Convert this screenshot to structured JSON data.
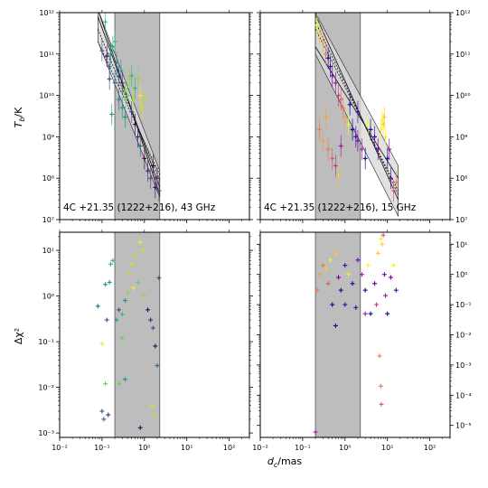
{
  "chart_data": [
    {
      "type": "scatter",
      "panel": "top-left",
      "xscale": "log",
      "yscale": "log",
      "xlim": [
        0.01,
        300
      ],
      "ylim": [
        10000000.0,
        1000000000000.0
      ],
      "ylabel": "T_b/K",
      "annotation": "4C +21.35 (1222+216), 43 GHz",
      "shaded_region": [
        0.2,
        2.3
      ],
      "fit_lines": [
        {
          "x": [
            0.08,
            2.3
          ],
          "y": [
            800000000000.0,
            60000000.0
          ]
        },
        {
          "x": [
            0.08,
            2.3
          ],
          "y": [
            400000000000.0,
            90000000.0
          ]
        },
        {
          "x": [
            0.08,
            2.3
          ],
          "y": [
            1200000000000.0,
            40000000.0
          ]
        },
        {
          "x": [
            0.08,
            2.3
          ],
          "y": [
            200000000000.0,
            120000000.0
          ]
        }
      ],
      "band": {
        "x": [
          0.08,
          2.3
        ],
        "upper": [
          1200000000000.0,
          150000000.0
        ],
        "lower": [
          200000000000.0,
          35000000.0
        ]
      },
      "points": [
        {
          "x": 0.12,
          "y": 600000000000.0,
          "c": "#35b779"
        },
        {
          "x": 0.1,
          "y": 120000000000.0,
          "c": "#3b528b"
        },
        {
          "x": 0.13,
          "y": 90000000000.0,
          "c": "#440154"
        },
        {
          "x": 0.15,
          "y": 50000000000.0,
          "c": "#31688e"
        },
        {
          "x": 0.16,
          "y": 100000000000.0,
          "c": "#21918c"
        },
        {
          "x": 0.18,
          "y": 150000000000.0,
          "c": "#1f9e89"
        },
        {
          "x": 0.2,
          "y": 200000000000.0,
          "c": "#35b779"
        },
        {
          "x": 0.22,
          "y": 60000000000.0,
          "c": "#26828e"
        },
        {
          "x": 0.25,
          "y": 30000000000.0,
          "c": "#3e4989"
        },
        {
          "x": 0.3,
          "y": 20000000000.0,
          "c": "#482878"
        },
        {
          "x": 0.35,
          "y": 14000000000.0,
          "c": "#6ece58"
        },
        {
          "x": 0.28,
          "y": 40000000000.0,
          "c": "#1f9e89"
        },
        {
          "x": 0.4,
          "y": 10000000000.0,
          "c": "#6ece58"
        },
        {
          "x": 0.45,
          "y": 25000000000.0,
          "c": "#90d743"
        },
        {
          "x": 0.5,
          "y": 30000000000.0,
          "c": "#35b779"
        },
        {
          "x": 0.55,
          "y": 8000000000.0,
          "c": "#b5de2b"
        },
        {
          "x": 0.6,
          "y": 15000000000.0,
          "c": "#35b779"
        },
        {
          "x": 0.7,
          "y": 25000000000.0,
          "c": "#90d743"
        },
        {
          "x": 0.8,
          "y": 10000000000.0,
          "c": "#fde725"
        },
        {
          "x": 0.9,
          "y": 5000000000.0,
          "c": "#d8e219"
        },
        {
          "x": 1.0,
          "y": 8000000000.0,
          "c": "#b5de2b"
        },
        {
          "x": 0.5,
          "y": 4000000000.0,
          "c": "#3e4989"
        },
        {
          "x": 0.6,
          "y": 2000000000.0,
          "c": "#440154"
        },
        {
          "x": 0.7,
          "y": 1000000000.0,
          "c": "#482878"
        },
        {
          "x": 0.8,
          "y": 600000000.0,
          "c": "#31688e"
        },
        {
          "x": 1.0,
          "y": 300000000.0,
          "c": "#440154"
        },
        {
          "x": 1.2,
          "y": 150000000.0,
          "c": "#482878"
        },
        {
          "x": 1.4,
          "y": 100000000.0,
          "c": "#3b528b"
        },
        {
          "x": 1.6,
          "y": 200000000.0,
          "c": "#440154"
        },
        {
          "x": 1.8,
          "y": 60000000.0,
          "c": "#440154"
        },
        {
          "x": 2.0,
          "y": 100000000.0,
          "c": "#482878"
        },
        {
          "x": 2.2,
          "y": 50000000.0,
          "c": "#3b528b"
        },
        {
          "x": 0.35,
          "y": 3000000000.0,
          "c": "#21918c"
        },
        {
          "x": 0.25,
          "y": 8000000000.0,
          "c": "#26828e"
        },
        {
          "x": 0.2,
          "y": 20000000000.0,
          "c": "#31688e"
        },
        {
          "x": 0.17,
          "y": 3500000000.0,
          "c": "#21918c"
        },
        {
          "x": 0.3,
          "y": 5000000000.0,
          "c": "#1f9e89"
        },
        {
          "x": 0.15,
          "y": 25000000000.0,
          "c": "#3e4989"
        }
      ]
    },
    {
      "type": "scatter",
      "panel": "top-right",
      "xscale": "log",
      "yscale": "log",
      "xlim": [
        0.01,
        300
      ],
      "ylim": [
        10000000.0,
        1000000000000.0
      ],
      "annotation": "4C +21.35 (1222+216), 15 GHz",
      "shaded_region": [
        0.2,
        2.3
      ],
      "fit_lines": [
        {
          "x": [
            0.2,
            18
          ],
          "y": [
            900000000000.0,
            30000000.0
          ]
        },
        {
          "x": [
            0.2,
            18
          ],
          "y": [
            400000000000.0,
            50000000.0
          ]
        },
        {
          "x": [
            0.2,
            18
          ],
          "y": [
            150000000000.0,
            100000000.0
          ]
        },
        {
          "x": [
            0.2,
            18
          ],
          "y": [
            600000000000.0,
            40000000.0
          ]
        }
      ],
      "band": {
        "x": [
          0.2,
          18
        ],
        "upper": [
          1000000000000.0,
          200000000.0
        ],
        "lower": [
          100000000000.0,
          12000000.0
        ]
      },
      "points": [
        {
          "x": 0.22,
          "y": 500000000000.0,
          "c": "#f0f921"
        },
        {
          "x": 0.25,
          "y": 300000000000.0,
          "c": "#fdca26"
        },
        {
          "x": 0.3,
          "y": 200000000000.0,
          "c": "#fb9f3a"
        },
        {
          "x": 0.35,
          "y": 100000000000.0,
          "c": "#ed7953"
        },
        {
          "x": 0.4,
          "y": 80000000000.0,
          "c": "#0d0887"
        },
        {
          "x": 0.45,
          "y": 50000000000.0,
          "c": "#46039f"
        },
        {
          "x": 0.5,
          "y": 30000000000.0,
          "c": "#7201a8"
        },
        {
          "x": 0.6,
          "y": 20000000000.0,
          "c": "#9c179e"
        },
        {
          "x": 0.7,
          "y": 10000000000.0,
          "c": "#bd3786"
        },
        {
          "x": 0.8,
          "y": 8000000000.0,
          "c": "#d8576b"
        },
        {
          "x": 0.9,
          "y": 5000000000.0,
          "c": "#ed7953"
        },
        {
          "x": 1.0,
          "y": 3000000000.0,
          "c": "#fb9f3a"
        },
        {
          "x": 1.2,
          "y": 2000000000.0,
          "c": "#f0f921"
        },
        {
          "x": 1.5,
          "y": 1500000000.0,
          "c": "#0d0887"
        },
        {
          "x": 1.8,
          "y": 1000000000.0,
          "c": "#46039f"
        },
        {
          "x": 2.0,
          "y": 800000000.0,
          "c": "#7201a8"
        },
        {
          "x": 2.5,
          "y": 500000000.0,
          "c": "#9c179e"
        },
        {
          "x": 3.0,
          "y": 300000000.0,
          "c": "#0d0887"
        },
        {
          "x": 3.5,
          "y": 2000000000.0,
          "c": "#f0f921"
        },
        {
          "x": 4.0,
          "y": 1500000000.0,
          "c": "#0d0887"
        },
        {
          "x": 5.0,
          "y": 1000000000.0,
          "c": "#46039f"
        },
        {
          "x": 6.0,
          "y": 500000000.0,
          "c": "#7201a8"
        },
        {
          "x": 7.0,
          "y": 1500000000.0,
          "c": "#f0f921"
        },
        {
          "x": 8.0,
          "y": 2000000000.0,
          "c": "#fdca26"
        },
        {
          "x": 9.0,
          "y": 1000000000.0,
          "c": "#f0f921"
        },
        {
          "x": 10.0,
          "y": 300000000.0,
          "c": "#0d0887"
        },
        {
          "x": 12.0,
          "y": 100000000.0,
          "c": "#46039f"
        },
        {
          "x": 14.0,
          "y": 50000000.0,
          "c": "#d8576b"
        },
        {
          "x": 16.0,
          "y": 80000000.0,
          "c": "#ed7953"
        },
        {
          "x": 0.3,
          "y": 800000000.0,
          "c": "#fb9f3a"
        },
        {
          "x": 0.4,
          "y": 500000000.0,
          "c": "#ed7953"
        },
        {
          "x": 0.5,
          "y": 300000000.0,
          "c": "#d8576b"
        },
        {
          "x": 0.6,
          "y": 200000000.0,
          "c": "#bd3786"
        },
        {
          "x": 0.7,
          "y": 120000000.0,
          "c": "#fdca26"
        },
        {
          "x": 0.8,
          "y": 600000000.0,
          "c": "#9c179e"
        },
        {
          "x": 0.25,
          "y": 1500000000.0,
          "c": "#ed7953"
        },
        {
          "x": 0.35,
          "y": 3000000000.0,
          "c": "#fb9f3a"
        },
        {
          "x": 1.3,
          "y": 6000000000.0,
          "c": "#0d0887"
        },
        {
          "x": 2.0,
          "y": 4000000000.0,
          "c": "#46039f"
        },
        {
          "x": 7.5,
          "y": 2500000000.0,
          "c": "#f0f921"
        },
        {
          "x": 8.5,
          "y": 3000000000.0,
          "c": "#fdca26"
        },
        {
          "x": 11.0,
          "y": 500000000.0,
          "c": "#9c179e"
        }
      ]
    },
    {
      "type": "scatter",
      "panel": "bottom-left",
      "xscale": "log",
      "yscale": "log",
      "xlim": [
        0.01,
        300
      ],
      "ylim": [
        0.0008,
        25
      ],
      "ylabel": "Δχ²",
      "shaded_region": [
        0.2,
        2.3
      ],
      "points": [
        {
          "x": 0.08,
          "y": 0.6,
          "c": "#31688e"
        },
        {
          "x": 0.1,
          "y": 0.09,
          "c": "#fde725"
        },
        {
          "x": 0.12,
          "y": 1.8,
          "c": "#21918c"
        },
        {
          "x": 0.15,
          "y": 2,
          "c": "#21918c"
        },
        {
          "x": 0.16,
          "y": 5,
          "c": "#35b779"
        },
        {
          "x": 0.18,
          "y": 6,
          "c": "#35b779"
        },
        {
          "x": 0.13,
          "y": 0.3,
          "c": "#3e4989"
        },
        {
          "x": 0.12,
          "y": 0.012,
          "c": "#6ece58"
        },
        {
          "x": 0.1,
          "y": 0.003,
          "c": "#3b528b"
        },
        {
          "x": 0.11,
          "y": 0.002,
          "c": "#31688e"
        },
        {
          "x": 0.14,
          "y": 0.0025,
          "c": "#482878"
        },
        {
          "x": 0.22,
          "y": 0.3,
          "c": "#1f9e89"
        },
        {
          "x": 0.25,
          "y": 0.5,
          "c": "#3e4989"
        },
        {
          "x": 0.3,
          "y": 0.4,
          "c": "#35b779"
        },
        {
          "x": 0.35,
          "y": 0.8,
          "c": "#21918c"
        },
        {
          "x": 0.4,
          "y": 1.2,
          "c": "#90d743"
        },
        {
          "x": 0.45,
          "y": 3,
          "c": "#b5de2b"
        },
        {
          "x": 0.5,
          "y": 5,
          "c": "#d8e219"
        },
        {
          "x": 0.55,
          "y": 1.5,
          "c": "#fde725"
        },
        {
          "x": 0.6,
          "y": 8,
          "c": "#b5de2b"
        },
        {
          "x": 0.7,
          "y": 2,
          "c": "#6ece58"
        },
        {
          "x": 0.8,
          "y": 15,
          "c": "#fde725"
        },
        {
          "x": 0.9,
          "y": 10,
          "c": "#d8e219"
        },
        {
          "x": 1.0,
          "y": 1,
          "c": "#90d743"
        },
        {
          "x": 1.2,
          "y": 0.5,
          "c": "#440154"
        },
        {
          "x": 1.4,
          "y": 0.3,
          "c": "#482878"
        },
        {
          "x": 1.6,
          "y": 0.2,
          "c": "#3b528b"
        },
        {
          "x": 1.8,
          "y": 0.08,
          "c": "#440154"
        },
        {
          "x": 2.0,
          "y": 0.03,
          "c": "#31688e"
        },
        {
          "x": 2.2,
          "y": 2.5,
          "c": "#3b528b"
        },
        {
          "x": 0.25,
          "y": 0.012,
          "c": "#6ece58"
        },
        {
          "x": 0.35,
          "y": 0.015,
          "c": "#21918c"
        },
        {
          "x": 0.8,
          "y": 0.0013,
          "c": "#440154"
        },
        {
          "x": 1.5,
          "y": 0.004,
          "c": "#d8e219"
        },
        {
          "x": 1.7,
          "y": 0.0025,
          "c": "#b5de2b"
        },
        {
          "x": 0.3,
          "y": 0.12,
          "c": "#6ece58"
        }
      ]
    },
    {
      "type": "scatter",
      "panel": "bottom-right",
      "xscale": "log",
      "yscale": "log",
      "xlim": [
        0.01,
        300
      ],
      "ylim": [
        4e-06,
        25
      ],
      "shaded_region": [
        0.2,
        2.3
      ],
      "points": [
        {
          "x": 0.2,
          "y": 6e-06,
          "c": "#9c179e"
        },
        {
          "x": 0.22,
          "y": 0.3,
          "c": "#ed7953"
        },
        {
          "x": 0.25,
          "y": 1,
          "c": "#fb9f3a"
        },
        {
          "x": 0.3,
          "y": 2,
          "c": "#ed7953"
        },
        {
          "x": 0.35,
          "y": 1.5,
          "c": "#fdca26"
        },
        {
          "x": 0.4,
          "y": 0.5,
          "c": "#d8576b"
        },
        {
          "x": 0.45,
          "y": 3,
          "c": "#f0f921"
        },
        {
          "x": 0.5,
          "y": 0.1,
          "c": "#0d0887"
        },
        {
          "x": 0.6,
          "y": 5,
          "c": "#fdca26"
        },
        {
          "x": 0.7,
          "y": 0.8,
          "c": "#7201a8"
        },
        {
          "x": 0.8,
          "y": 0.3,
          "c": "#0d0887"
        },
        {
          "x": 1.0,
          "y": 2,
          "c": "#46039f"
        },
        {
          "x": 1.2,
          "y": 1,
          "c": "#f0f921"
        },
        {
          "x": 1.5,
          "y": 0.5,
          "c": "#0d0887"
        },
        {
          "x": 1.8,
          "y": 0.08,
          "c": "#46039f"
        },
        {
          "x": 2.0,
          "y": 3,
          "c": "#7201a8"
        },
        {
          "x": 2.5,
          "y": 1,
          "c": "#9c179e"
        },
        {
          "x": 3.0,
          "y": 0.3,
          "c": "#0d0887"
        },
        {
          "x": 3.5,
          "y": 2,
          "c": "#f0f921"
        },
        {
          "x": 4.0,
          "y": 0.05,
          "c": "#0d0887"
        },
        {
          "x": 5.0,
          "y": 0.5,
          "c": "#46039f"
        },
        {
          "x": 6.0,
          "y": 5,
          "c": "#fdca26"
        },
        {
          "x": 7.0,
          "y": 15,
          "c": "#f0f921"
        },
        {
          "x": 7.5,
          "y": 10,
          "c": "#fdca26"
        },
        {
          "x": 8.0,
          "y": 20,
          "c": "#d8576b"
        },
        {
          "x": 9.0,
          "y": 0.2,
          "c": "#9c179e"
        },
        {
          "x": 10.0,
          "y": 0.05,
          "c": "#0d0887"
        },
        {
          "x": 12.0,
          "y": 0.8,
          "c": "#7201a8"
        },
        {
          "x": 14.0,
          "y": 2,
          "c": "#f0f921"
        },
        {
          "x": 16.0,
          "y": 0.3,
          "c": "#46039f"
        },
        {
          "x": 0.6,
          "y": 0.02,
          "c": "#0d0887"
        },
        {
          "x": 1.0,
          "y": 0.1,
          "c": "#46039f"
        },
        {
          "x": 7.0,
          "y": 0.0002,
          "c": "#ed7953"
        },
        {
          "x": 7.2,
          "y": 5e-05,
          "c": "#d8576b"
        },
        {
          "x": 6.5,
          "y": 0.002,
          "c": "#ed7953"
        },
        {
          "x": 3.0,
          "y": 0.05,
          "c": "#9c179e"
        },
        {
          "x": 5.5,
          "y": 0.1,
          "c": "#bd3786"
        },
        {
          "x": 8.5,
          "y": 1,
          "c": "#7201a8"
        }
      ]
    }
  ],
  "axes_text": {
    "xlabel": "d_c/mas",
    "x_ticks": [
      "10⁻²",
      "10⁻¹",
      "10⁰",
      "10¹",
      "10²"
    ],
    "y_ticks_top": [
      "10⁷",
      "10⁸",
      "10⁹",
      "10¹⁰",
      "10¹¹",
      "10¹²"
    ],
    "y_ticks_bl": [
      "10⁻³",
      "10⁻²",
      "10⁻¹",
      "10⁰",
      "10¹"
    ],
    "y_ticks_br": [
      "10⁻⁵",
      "10⁻⁴",
      "10⁻³",
      "10⁻²",
      "10⁻¹",
      "10⁰",
      "10¹"
    ]
  },
  "colors": {
    "shade": "#bdbdbd",
    "band": "#d9d9d9",
    "axis": "#000000"
  }
}
